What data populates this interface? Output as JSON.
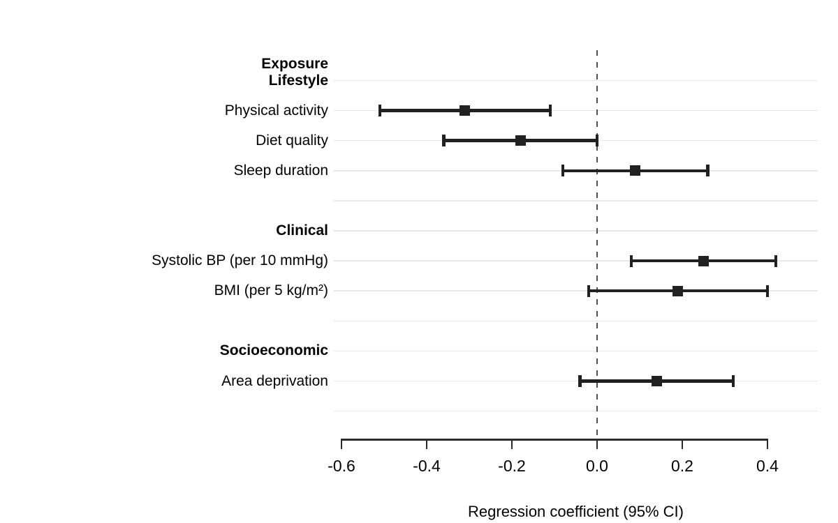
{
  "chart_data": {
    "type": "forest",
    "xlabel": "Regression coefficient (95% CI)",
    "column_header": "Exposure",
    "xlim": [
      -0.6,
      0.4
    ],
    "x_ticks": [
      -0.6,
      -0.4,
      -0.2,
      0.0,
      0.2,
      0.4
    ],
    "x_tick_labels": [
      "-0.6",
      "-0.4",
      "-0.2",
      "0.0",
      "0.2",
      "0.4"
    ],
    "reference_line": 0.0,
    "grid": true,
    "legend": "none",
    "rows": [
      {
        "label": "Lifestyle",
        "bold": true
      },
      {
        "label": "Physical activity",
        "estimate": -0.31,
        "ci_low": -0.51,
        "ci_high": -0.11
      },
      {
        "label": "Diet quality",
        "estimate": -0.18,
        "ci_low": -0.36,
        "ci_high": 0.0
      },
      {
        "label": "Sleep duration",
        "estimate": 0.09,
        "ci_low": -0.08,
        "ci_high": 0.26
      },
      {
        "label": ""
      },
      {
        "label": "Clinical",
        "bold": true
      },
      {
        "label": "Systolic BP (per 10 mmHg)",
        "estimate": 0.25,
        "ci_low": 0.08,
        "ci_high": 0.42
      },
      {
        "label": "BMI (per 5 kg/m²)",
        "estimate": 0.19,
        "ci_low": -0.02,
        "ci_high": 0.4
      },
      {
        "label": ""
      },
      {
        "label": "Socioeconomic",
        "bold": true
      },
      {
        "label": "Area deprivation",
        "estimate": 0.14,
        "ci_low": -0.04,
        "ci_high": 0.32
      },
      {
        "label": ""
      }
    ]
  },
  "colors": {
    "marker": "#212121",
    "gridline": "#e8e8e8",
    "reference_line": "#4f4f4f",
    "axis": "#2b2b2b",
    "text": "#000000",
    "background": "#ffffff"
  }
}
